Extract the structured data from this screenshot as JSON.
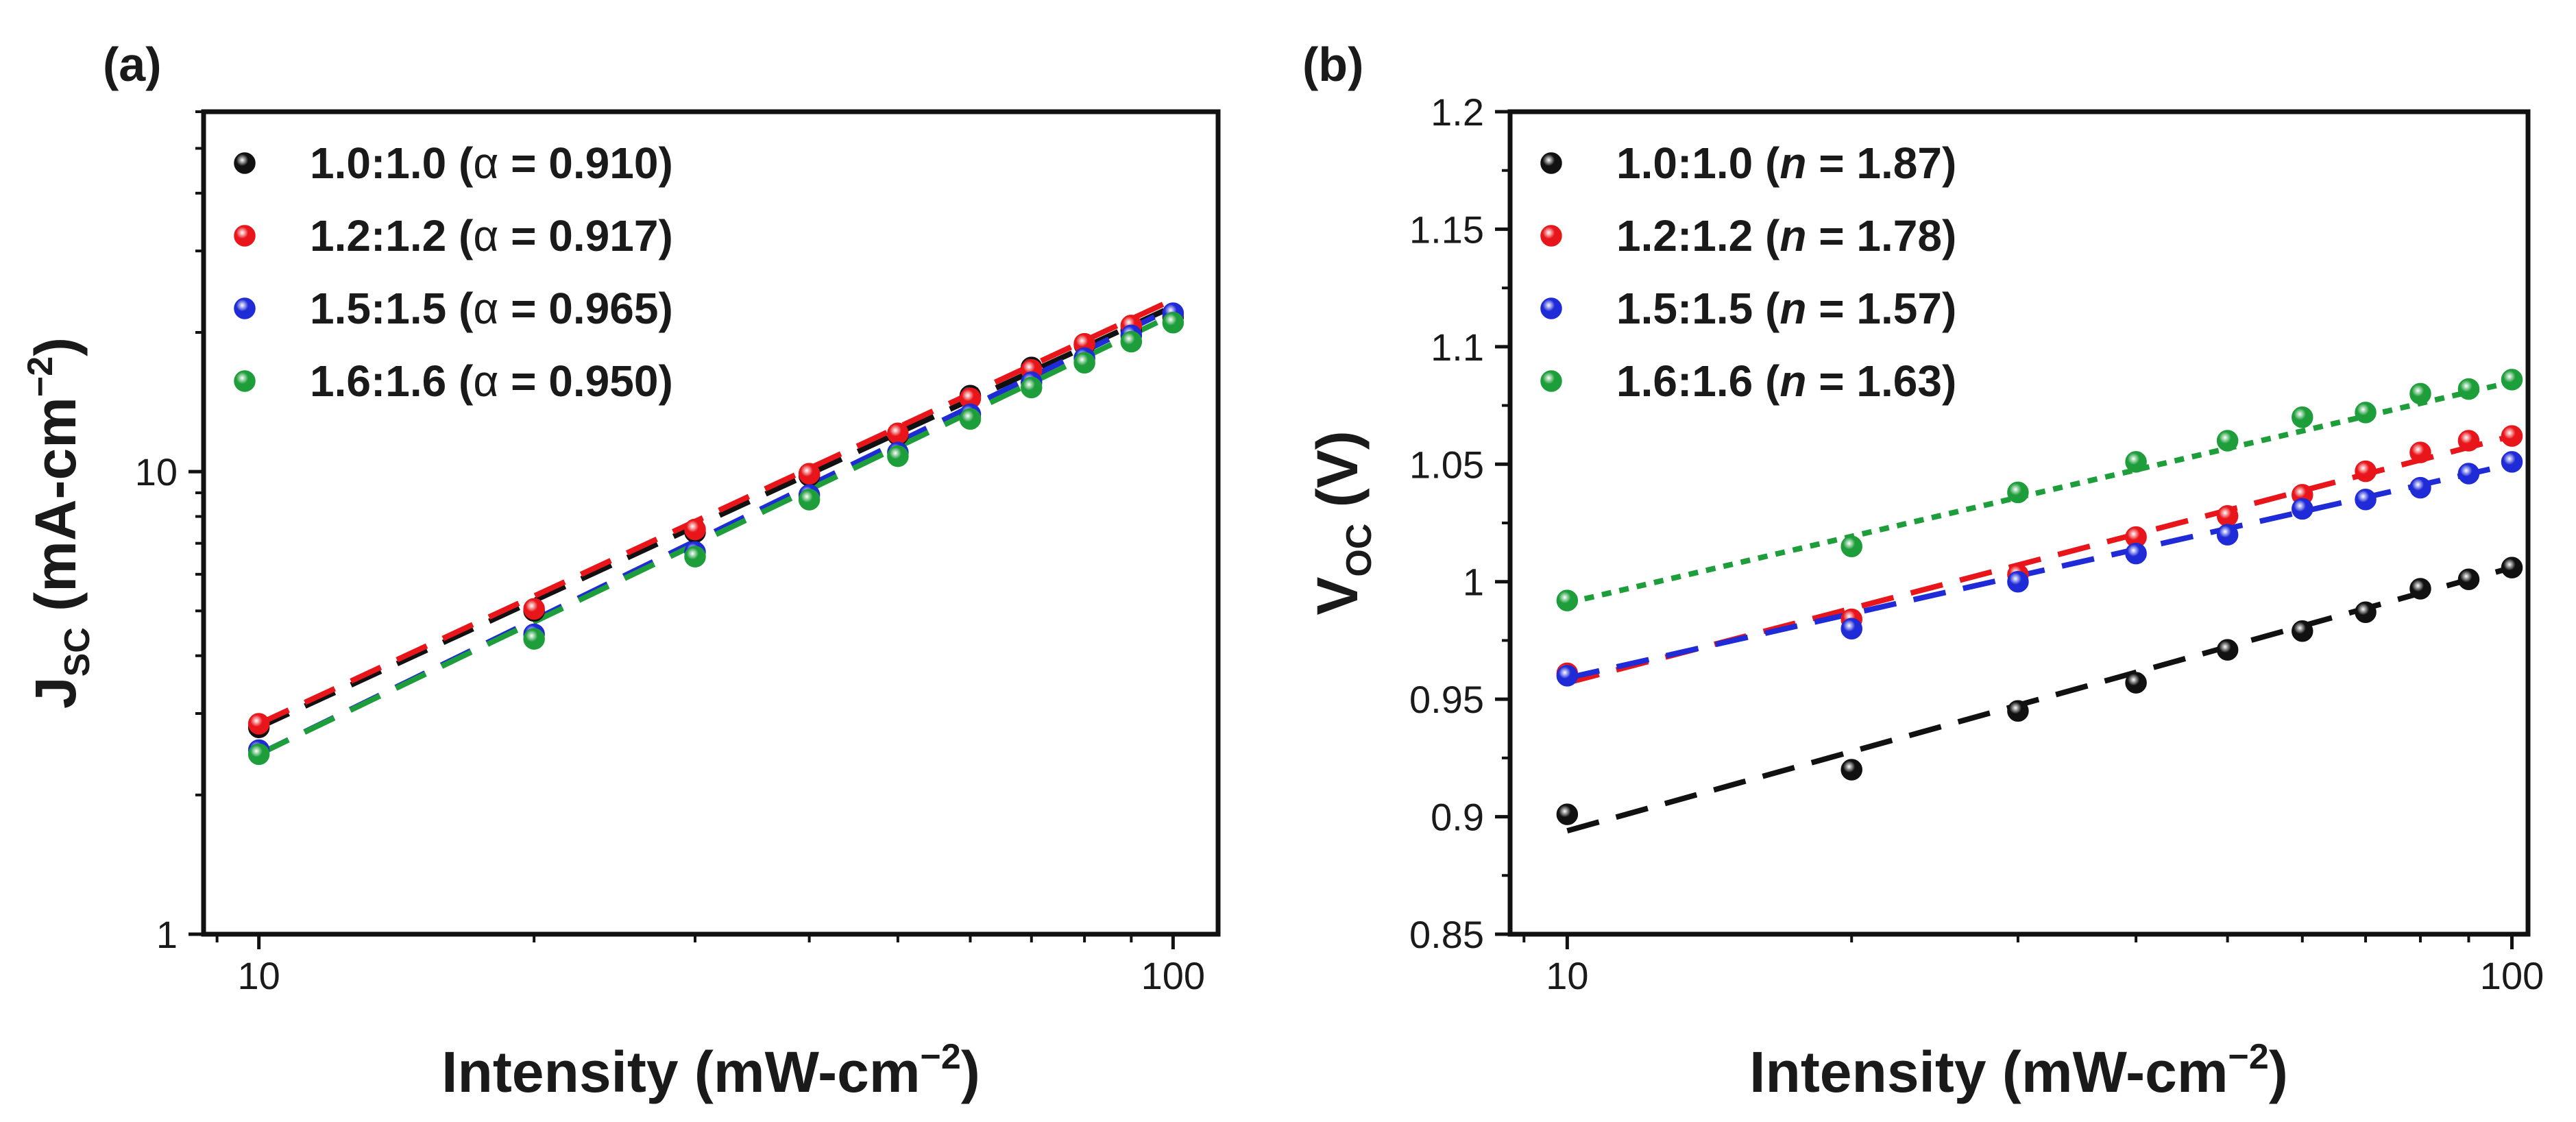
{
  "chart_data": [
    {
      "panel_label": "(a)",
      "type": "scatter",
      "scale": "log-log",
      "xlabel": "Intensity (mW-cm",
      "xlabel_sup": "−2",
      "xlabel_tail": ")",
      "ylabel": "J",
      "ylabel_sub": "SC",
      "ylabel_rest": " (mA-cm",
      "ylabel_sup": "−2",
      "ylabel_tail": ")",
      "xlim": [
        8.7,
        112
      ],
      "ylim": [
        1,
        60
      ],
      "x_ticks": [
        {
          "value": 10,
          "label": "10"
        },
        {
          "value": 100,
          "label": "100"
        }
      ],
      "y_ticks": [
        {
          "value": 1,
          "label": "1"
        },
        {
          "value": 10,
          "label": "10"
        }
      ],
      "legend_position": "top-left",
      "x": [
        10,
        20,
        30,
        40,
        50,
        60,
        70,
        80,
        90,
        100
      ],
      "series": [
        {
          "name": "1.0:1.0",
          "param_symbol": "α",
          "param_value": "0.910",
          "color": "#111111",
          "values": [
            2.8,
            5.0,
            7.4,
            9.8,
            12.0,
            14.6,
            16.8,
            18.8,
            20.2,
            21.6
          ]
        },
        {
          "name": "1.2:1.2",
          "param_symbol": "α",
          "param_value": "0.917",
          "color": "#e8161b",
          "values": [
            2.85,
            5.05,
            7.5,
            9.9,
            12.1,
            14.4,
            16.6,
            18.9,
            20.7,
            21.9
          ]
        },
        {
          "name": "1.5:1.5",
          "param_symbol": "α",
          "param_value": "0.965",
          "color": "#1f2bd6",
          "values": [
            2.5,
            4.45,
            6.7,
            8.9,
            11.0,
            13.3,
            15.6,
            17.6,
            19.7,
            22.0
          ]
        },
        {
          "name": "1.6:1.6",
          "param_symbol": "α",
          "param_value": "0.950",
          "color": "#1e9e3a",
          "values": [
            2.45,
            4.35,
            6.55,
            8.7,
            10.8,
            13.0,
            15.2,
            17.2,
            19.1,
            21.0
          ]
        }
      ],
      "fits": [
        {
          "series": "1.0:1.0",
          "a": 2.8,
          "b": 0.91,
          "dash": "long"
        },
        {
          "series": "1.2:1.2",
          "a": 2.85,
          "b": 0.917,
          "dash": "long"
        },
        {
          "series": "1.5:1.5",
          "a": 2.45,
          "b": 0.965,
          "dash": "long"
        },
        {
          "series": "1.6:1.6",
          "a": 2.45,
          "b": 0.95,
          "dash": "long"
        }
      ]
    },
    {
      "panel_label": "(b)",
      "type": "scatter",
      "scale": "semilog-x",
      "xlabel": "Intensity (mW-cm",
      "xlabel_sup": "−2",
      "xlabel_tail": ")",
      "ylabel": "V",
      "ylabel_sub": "OC",
      "ylabel_rest": " (V)",
      "ylabel_sup": "",
      "ylabel_tail": "",
      "xlim": [
        8.7,
        104
      ],
      "ylim": [
        0.85,
        1.2
      ],
      "x_ticks": [
        {
          "value": 10,
          "label": "10"
        },
        {
          "value": 100,
          "label": "100"
        }
      ],
      "y_ticks": [
        {
          "value": 0.85,
          "label": "0.85"
        },
        {
          "value": 0.9,
          "label": "0.9"
        },
        {
          "value": 0.95,
          "label": "0.95"
        },
        {
          "value": 1.0,
          "label": "1"
        },
        {
          "value": 1.05,
          "label": "1.05"
        },
        {
          "value": 1.1,
          "label": "1.1"
        },
        {
          "value": 1.15,
          "label": "1.15"
        },
        {
          "value": 1.2,
          "label": "1.2"
        }
      ],
      "legend_position": "top-left",
      "x": [
        10,
        20,
        30,
        40,
        50,
        60,
        70,
        80,
        90,
        100
      ],
      "series": [
        {
          "name": "1.0:1.0",
          "param_symbol": "n",
          "param_value": "1.87",
          "color": "#111111",
          "values": [
            0.901,
            0.92,
            0.945,
            0.957,
            0.971,
            0.979,
            0.987,
            0.997,
            1.001,
            1.006
          ]
        },
        {
          "name": "1.2:1.2",
          "param_symbol": "n",
          "param_value": "1.78",
          "color": "#e8161b",
          "values": [
            0.961,
            0.984,
            1.003,
            1.019,
            1.028,
            1.037,
            1.047,
            1.055,
            1.06,
            1.062
          ]
        },
        {
          "name": "1.5:1.5",
          "param_symbol": "n",
          "param_value": "1.57",
          "color": "#1f2bd6",
          "values": [
            0.96,
            0.98,
            1.0,
            1.012,
            1.02,
            1.031,
            1.035,
            1.04,
            1.046,
            1.051
          ]
        },
        {
          "name": "1.6:1.6",
          "param_symbol": "n",
          "param_value": "1.63",
          "color": "#1e9e3a",
          "values": [
            0.992,
            1.015,
            1.038,
            1.051,
            1.06,
            1.07,
            1.072,
            1.08,
            1.082,
            1.086
          ]
        }
      ],
      "fits": [
        {
          "series": "1.0:1.0",
          "a": 0.894,
          "b": 0.112,
          "dash": "long"
        },
        {
          "series": "1.2:1.2",
          "a": 0.957,
          "b": 0.105,
          "dash": "long"
        },
        {
          "series": "1.5:1.5",
          "a": 0.959,
          "b": 0.091,
          "dash": "long"
        },
        {
          "series": "1.6:1.6",
          "a": 0.991,
          "b": 0.094,
          "dash": "short"
        }
      ]
    }
  ]
}
